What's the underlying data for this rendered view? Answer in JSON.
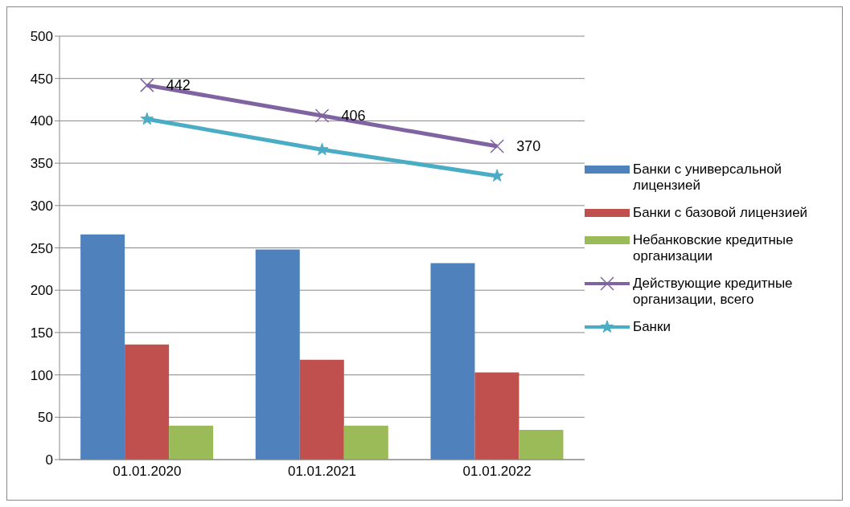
{
  "chart_data": {
    "type": "bar",
    "categories": [
      "01.01.2020",
      "01.01.2021",
      "01.01.2022"
    ],
    "series": [
      {
        "name": "Банки с универсальной лицензией",
        "color": "#4f81bd",
        "values": [
          266,
          248,
          232
        ]
      },
      {
        "name": "Банки с базовой лицензией",
        "color": "#c0504d",
        "values": [
          136,
          118,
          103
        ]
      },
      {
        "name": "Небанковские кредитные организации",
        "color": "#9bbb59",
        "values": [
          40,
          40,
          35
        ]
      },
      {
        "name": "Действующие кредитные организации, всего",
        "type": "line",
        "color": "#8064a2",
        "marker": "cross",
        "values": [
          442,
          406,
          370
        ],
        "value_labels": [
          "442",
          "406",
          "370"
        ]
      },
      {
        "name": "Банки",
        "type": "line",
        "color": "#4bacc6",
        "marker": "star",
        "values": [
          402,
          366,
          335
        ]
      }
    ],
    "ylim": [
      0,
      500
    ],
    "yticks": [
      0,
      50,
      100,
      150,
      200,
      250,
      300,
      350,
      400,
      450,
      500
    ],
    "grid": "y",
    "legend": "right"
  }
}
